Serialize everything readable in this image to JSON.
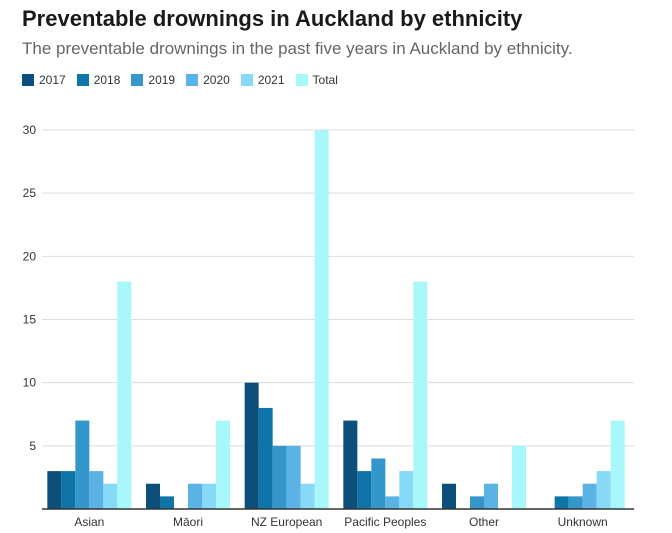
{
  "chart_data": {
    "type": "bar",
    "title": "Preventable drownings in Auckland by ethnicity",
    "subtitle": "The preventable drownings in the past five years in Auckland by ethnicity.",
    "categories": [
      "Asian",
      "Māori",
      "NZ European",
      "Pacific Peoples",
      "Other",
      "Unknown"
    ],
    "series": [
      {
        "name": "2017",
        "color": "#0b4f7a",
        "values": [
          3,
          2,
          10,
          7,
          2,
          0
        ]
      },
      {
        "name": "2018",
        "color": "#0f75a8",
        "values": [
          3,
          1,
          8,
          3,
          0,
          1
        ]
      },
      {
        "name": "2019",
        "color": "#3596cc",
        "values": [
          7,
          0,
          5,
          4,
          1,
          1
        ]
      },
      {
        "name": "2020",
        "color": "#5ab3e4",
        "values": [
          3,
          2,
          5,
          1,
          2,
          2
        ]
      },
      {
        "name": "2021",
        "color": "#86d9f7",
        "values": [
          2,
          2,
          2,
          3,
          0,
          3
        ]
      },
      {
        "name": "Total",
        "color": "#a8f7fb",
        "values": [
          18,
          7,
          30,
          18,
          5,
          7
        ]
      }
    ],
    "ylim": [
      0,
      30
    ],
    "yticks": [
      5,
      10,
      15,
      20,
      25,
      30
    ],
    "xlabel": "",
    "ylabel": "",
    "grid": true,
    "legend_position": "top-left"
  }
}
